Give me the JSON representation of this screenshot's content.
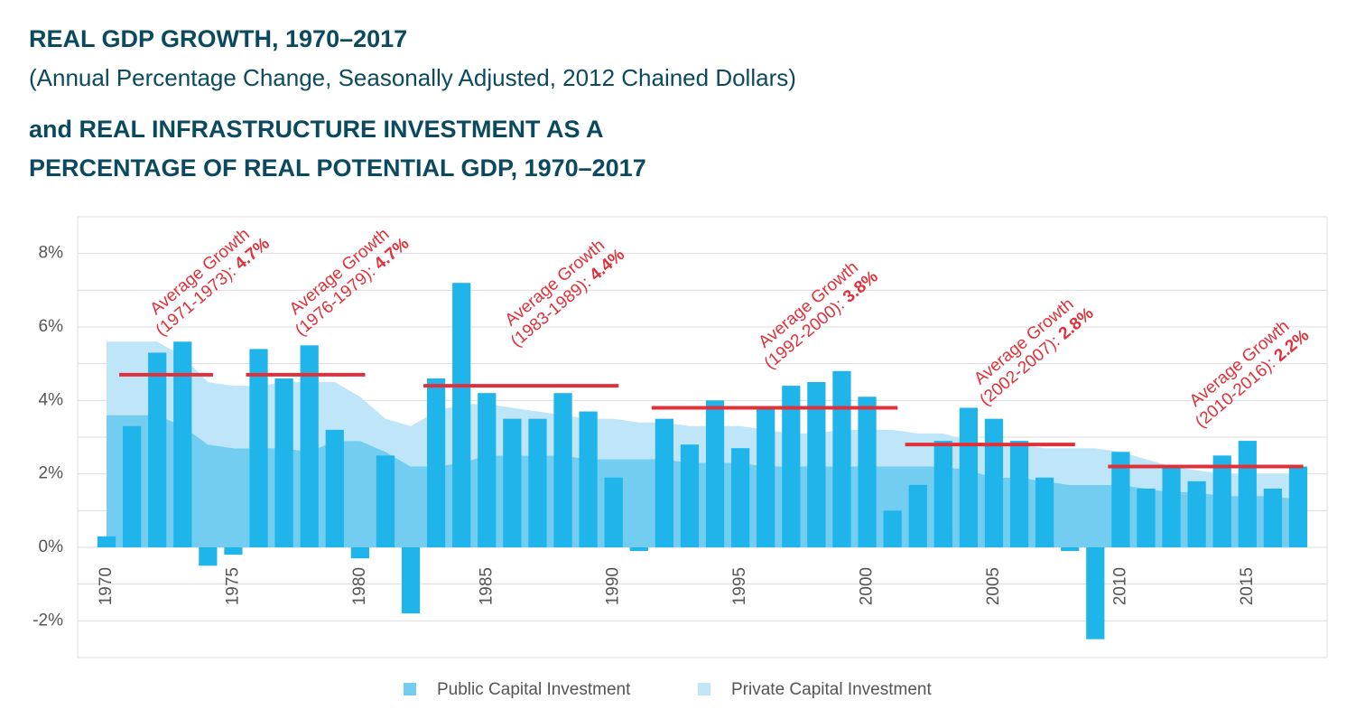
{
  "chart_data": {
    "type": "bar",
    "title": "REAL GDP GROWTH, 1970–2017",
    "subtitle": "(Annual Percentage Change, Seasonally Adjusted, 2012 Chained Dollars)",
    "title2": [
      "and REAL INFRASTRUCTURE INVESTMENT AS A",
      "PERCENTAGE OF REAL POTENTIAL GDP, 1970–2017"
    ],
    "x": [
      1970,
      1971,
      1972,
      1973,
      1974,
      1975,
      1976,
      1977,
      1978,
      1979,
      1980,
      1981,
      1982,
      1983,
      1984,
      1985,
      1986,
      1987,
      1988,
      1989,
      1990,
      1991,
      1992,
      1993,
      1994,
      1995,
      1996,
      1997,
      1998,
      1999,
      2000,
      2001,
      2002,
      2003,
      2004,
      2005,
      2006,
      2007,
      2008,
      2009,
      2010,
      2011,
      2012,
      2013,
      2014,
      2015,
      2016,
      2017
    ],
    "values": [
      0.3,
      3.3,
      5.3,
      5.6,
      -0.5,
      -0.2,
      5.4,
      4.6,
      5.5,
      3.2,
      -0.3,
      2.5,
      -1.8,
      4.6,
      7.2,
      4.2,
      3.5,
      3.5,
      4.2,
      3.7,
      1.9,
      -0.1,
      3.5,
      2.8,
      4.0,
      2.7,
      3.8,
      4.4,
      4.5,
      4.8,
      4.1,
      1.0,
      1.7,
      2.9,
      3.8,
      3.5,
      2.9,
      1.9,
      -0.1,
      -2.5,
      2.6,
      1.6,
      2.2,
      1.8,
      2.5,
      2.9,
      1.6,
      2.2
    ],
    "color": "#1fb4ea",
    "series": [
      {
        "name": "Public Capital Investment",
        "color": "#72cdf1",
        "values": [
          3.6,
          3.6,
          3.6,
          3.3,
          2.8,
          2.7,
          2.7,
          2.7,
          2.6,
          2.9,
          2.9,
          2.6,
          2.2,
          2.2,
          2.3,
          2.5,
          2.5,
          2.5,
          2.5,
          2.4,
          2.4,
          2.4,
          2.4,
          2.3,
          2.3,
          2.3,
          2.2,
          2.2,
          2.2,
          2.2,
          2.2,
          2.2,
          2.2,
          2.2,
          2.1,
          1.9,
          1.9,
          1.8,
          1.7,
          1.7,
          1.7,
          1.6,
          1.5,
          1.5,
          1.4,
          1.4,
          1.4,
          1.3
        ]
      },
      {
        "name": "Private Capital Investment",
        "color": "#bfe6f8",
        "values": [
          2.0,
          2.0,
          2.0,
          1.9,
          1.7,
          1.7,
          1.7,
          1.8,
          1.9,
          1.6,
          1.2,
          0.9,
          1.1,
          1.5,
          1.6,
          1.4,
          1.3,
          1.2,
          1.1,
          1.1,
          1.1,
          1.0,
          1.0,
          1.0,
          1.0,
          1.0,
          1.0,
          0.9,
          0.9,
          1.0,
          1.0,
          1.0,
          0.9,
          0.9,
          0.8,
          0.9,
          0.9,
          0.9,
          1.0,
          1.0,
          0.9,
          0.8,
          0.7,
          0.6,
          0.6,
          0.6,
          0.6,
          0.7
        ]
      }
    ],
    "averages": [
      {
        "text": "Average Growth",
        "period": "(1971-1973): ",
        "start": 1971,
        "end": 1973,
        "value": 4.7,
        "value_label": "4.7%"
      },
      {
        "text": "Average Growth",
        "period": "(1976-1979): ",
        "start": 1976,
        "end": 1979,
        "value": 4.7,
        "value_label": "4.7%"
      },
      {
        "text": "Average Growth",
        "period": "(1983-1989): ",
        "start": 1983,
        "end": 1989,
        "value": 4.4,
        "value_label": "4.4%"
      },
      {
        "text": "Average Growth",
        "period": "(1992-2000): ",
        "start": 1992,
        "end": 2000,
        "value": 3.8,
        "value_label": "3.8%"
      },
      {
        "text": "Average Growth",
        "period": "(2002-2007): ",
        "start": 2002,
        "end": 2007,
        "value": 2.8,
        "value_label": "2.8%"
      },
      {
        "text": "Average Growth",
        "period": "(2010-2016): ",
        "start": 2010,
        "end": 2016,
        "value": 2.2,
        "value_label": "2.2%"
      }
    ],
    "average_color": "#e0313a",
    "xlim": [
      1968.86,
      2018.14
    ],
    "xticks": [
      1970,
      1975,
      1980,
      1985,
      1990,
      1995,
      2000,
      2005,
      2010,
      2015
    ],
    "ylim": [
      -3,
      9
    ],
    "yticks": [
      {
        "value": -2,
        "label": "-2%"
      },
      {
        "value": 0,
        "label": "0%"
      },
      {
        "value": 2,
        "label": "2%"
      },
      {
        "value": 4,
        "label": "4%"
      },
      {
        "value": 6,
        "label": "6%"
      },
      {
        "value": 8,
        "label": "8%"
      }
    ],
    "ygrid": [
      -3,
      -2,
      -1,
      0,
      1,
      2,
      3,
      4,
      5,
      6,
      7,
      8,
      9
    ],
    "grid": true,
    "legend": "bottom"
  }
}
